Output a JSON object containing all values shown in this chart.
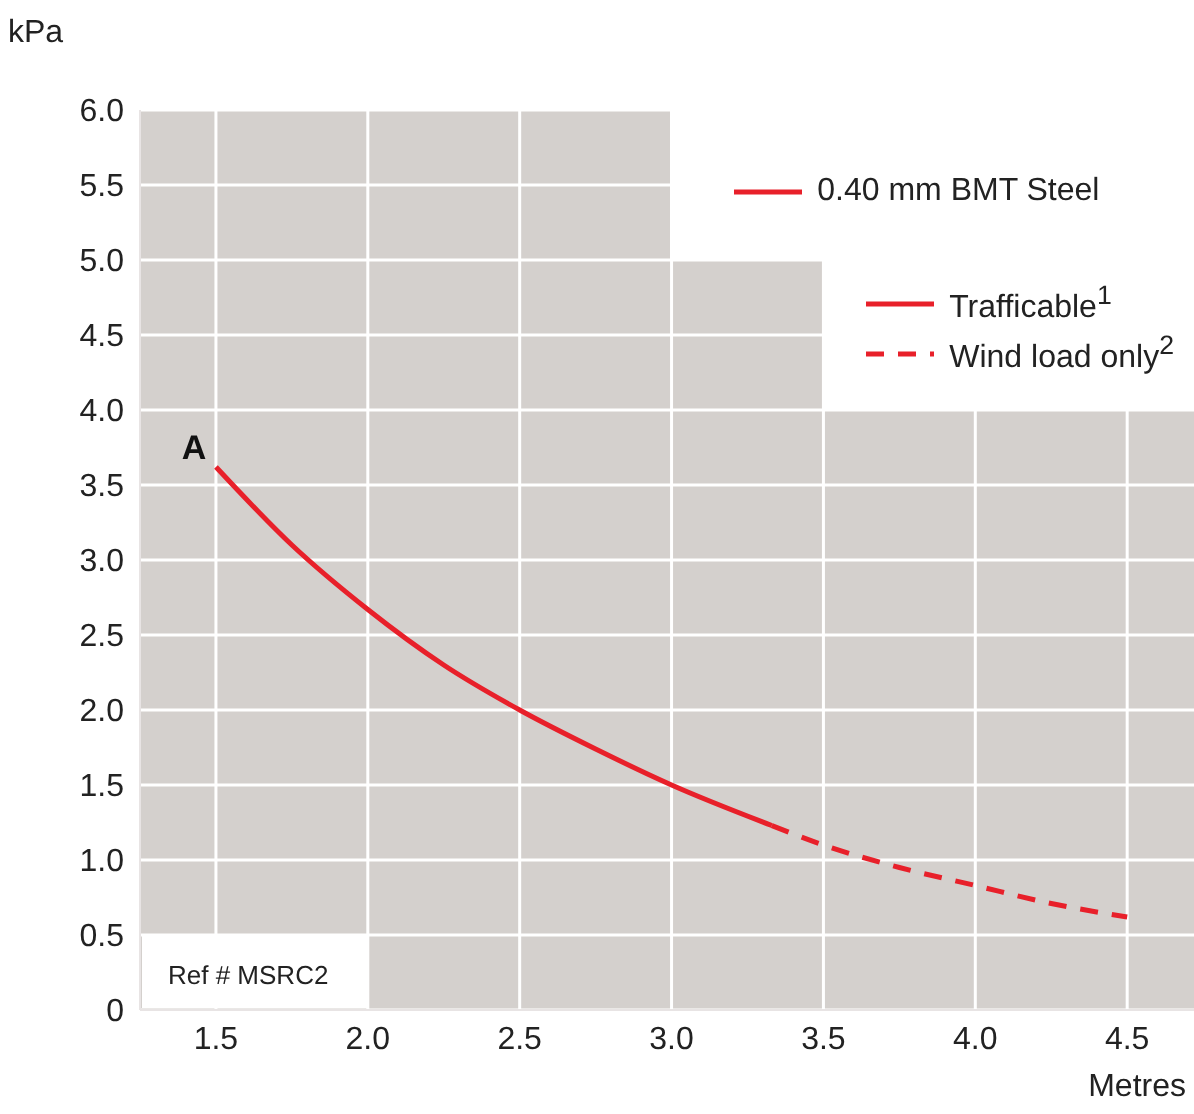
{
  "chart_data": {
    "type": "line",
    "xlabel": "Metres",
    "ylabel": "kPa",
    "legend_title": "0.40 mm BMT Steel",
    "series": [
      {
        "name": "Trafficable$^{1}$",
        "color": "#e8202a",
        "line_style": "solid",
        "x": [
          1.5,
          1.75,
          2.0,
          2.25,
          2.5,
          2.75,
          3.0,
          3.33
        ],
        "values": [
          3.62,
          3.1,
          2.67,
          2.3,
          2.0,
          1.74,
          1.5,
          1.23
        ]
      },
      {
        "name": "Wind load only$^{2}$",
        "color": "#e8202a",
        "line_style": "dashed",
        "x": [
          3.33,
          3.5,
          3.75,
          4.0,
          4.25,
          4.5
        ],
        "values": [
          1.23,
          1.1,
          0.95,
          0.83,
          0.71,
          0.62
        ]
      }
    ],
    "xlim": [
      1.25,
      4.72
    ],
    "xticks": [
      1.5,
      {
        "value": 2,
        "label": "2.0"
      },
      2.5,
      {
        "value": 3,
        "label": "3.0"
      },
      3.5,
      {
        "value": 4,
        "label": "4.0"
      },
      4.5
    ],
    "ylim": [
      0,
      6
    ],
    "yticks": [
      0,
      0.5,
      {
        "value": 1,
        "label": "1.0"
      },
      1.5,
      {
        "value": 2,
        "label": "2.0"
      },
      2.5,
      {
        "value": 3,
        "label": "3.0"
      },
      3.5,
      {
        "value": 4,
        "label": "4.0"
      },
      4.5,
      {
        "value": 5,
        "label": "5.0"
      },
      5.5,
      {
        "value": 6,
        "label": "6.0"
      }
    ],
    "grid": true,
    "legend": "top right",
    "marker": "none",
    "annotations": [
      {
        "text": "A",
        "x": 1.5,
        "y": 3.62
      },
      "Ref # MSRC2"
    ]
  }
}
